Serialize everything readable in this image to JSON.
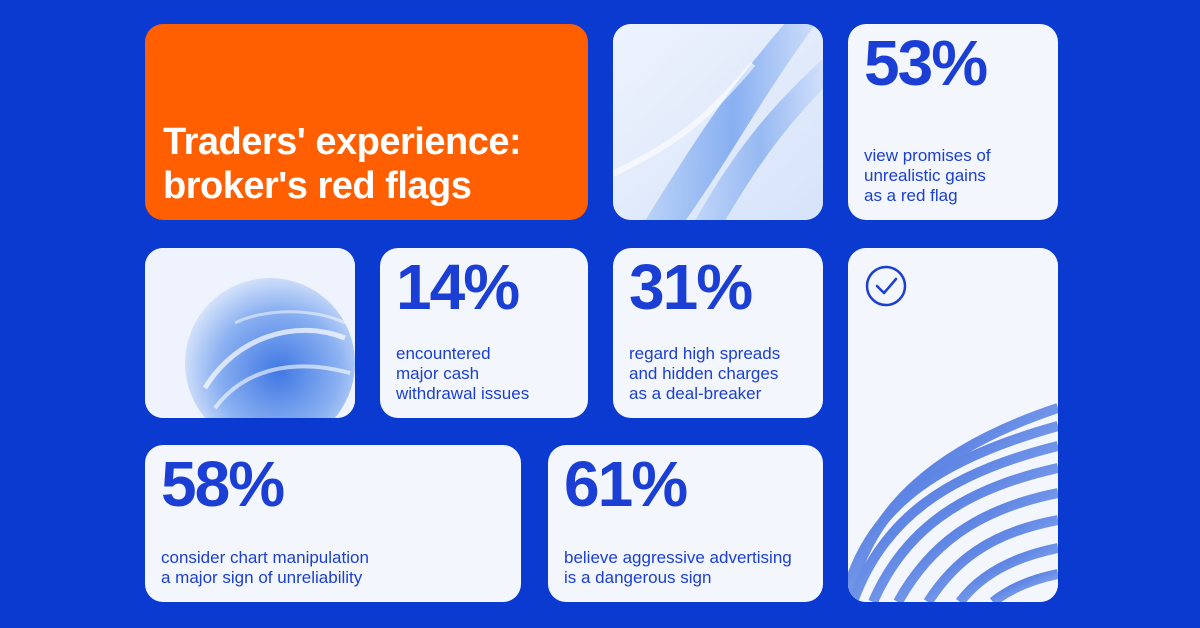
{
  "title": "Traders' experience:\nbroker's red flags",
  "stats": [
    {
      "value": "53%",
      "text": "view promises of\nunrealistic gains\nas a red flag"
    },
    {
      "value": "14%",
      "text": "encountered\nmajor cash\nwithdrawal issues"
    },
    {
      "value": "31%",
      "text": "regard high spreads\nand hidden charges\nas a deal-breaker"
    },
    {
      "value": "58%",
      "text": "consider chart manipulation\na major sign of unreliability"
    },
    {
      "value": "61%",
      "text": "believe aggressive advertising\nis a dangerous sign"
    }
  ],
  "colors": {
    "background": "#0b3ad1",
    "accent_orange": "#ff5f00",
    "card": "#f3f6fc",
    "stat_text": "#1b3fd4"
  },
  "icons": {
    "check": "check-circle-icon"
  }
}
